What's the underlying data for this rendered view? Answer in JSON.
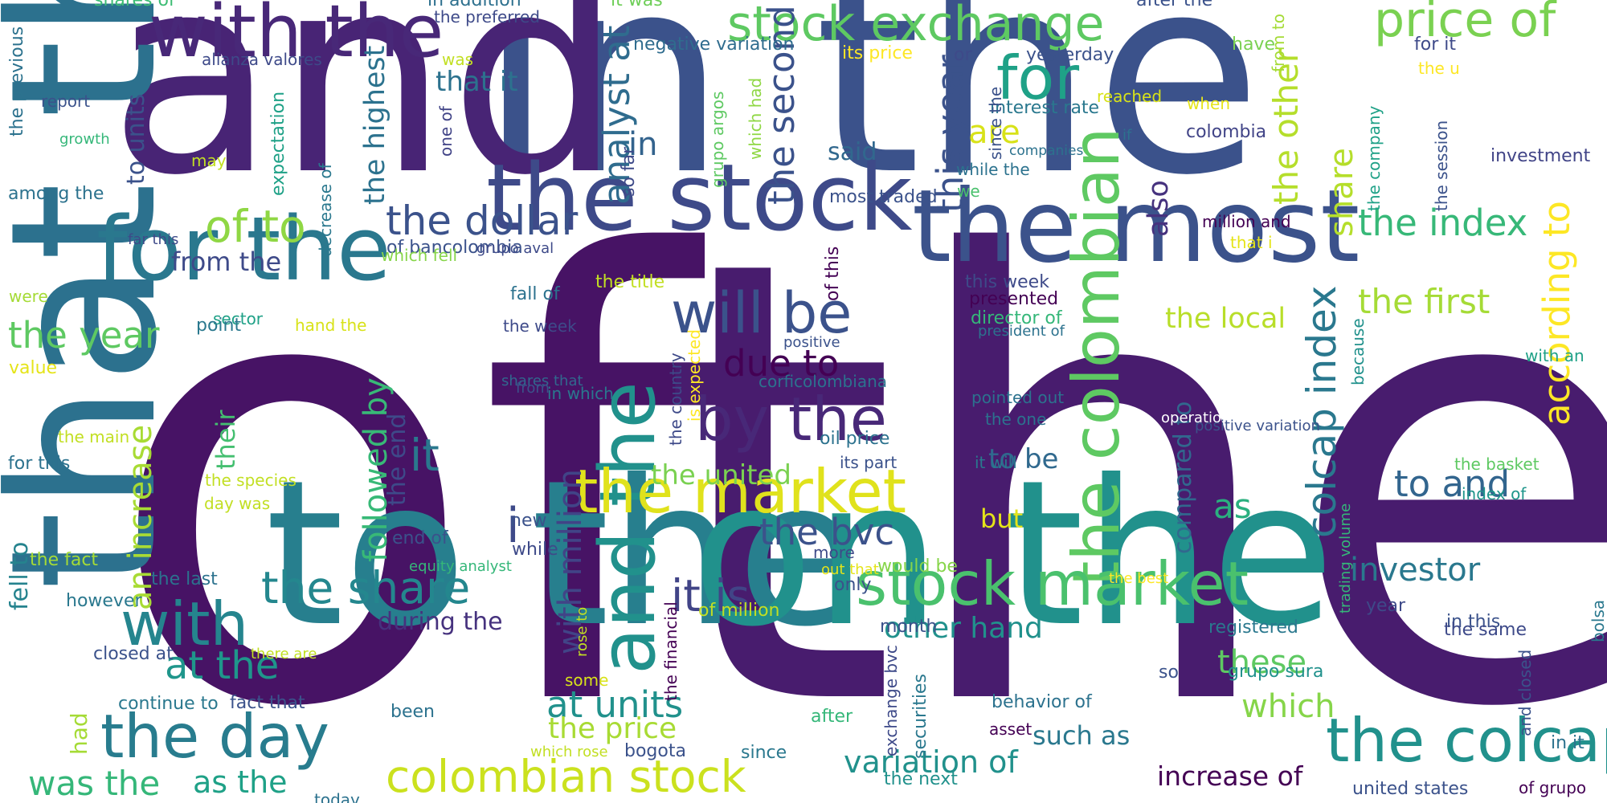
{
  "title": "",
  "words": [
    {
      "text": "of",
      "color": "#471365"
    },
    {
      "text": "the",
      "color": "#481c6e"
    },
    {
      "text": "in the",
      "color": "#3b528b"
    },
    {
      "text": "and",
      "color": "#482475"
    },
    {
      "text": "that the",
      "color": "#2c718e"
    },
    {
      "text": "to the",
      "color": "#277f8e"
    },
    {
      "text": "on the",
      "color": "#21918c"
    },
    {
      "text": "the most",
      "color": "#3b528b"
    },
    {
      "text": "the stock",
      "color": "#3e4a89"
    },
    {
      "text": "with the",
      "color": "#482878"
    },
    {
      "text": "for the",
      "color": "#2a788e"
    },
    {
      "text": "stock exchange",
      "color": "#5ec962"
    },
    {
      "text": "price of",
      "color": "#7ad151"
    },
    {
      "text": "and the",
      "color": "#21918c"
    },
    {
      "text": "the colombian",
      "color": "#5ec962"
    },
    {
      "text": "the market",
      "color": "#e0e21c"
    },
    {
      "text": "stock market",
      "color": "#4ac16d"
    },
    {
      "text": "colombian stock",
      "color": "#cbe11e"
    },
    {
      "text": "the colcap",
      "color": "#21918c"
    },
    {
      "text": "the day",
      "color": "#287c8e"
    },
    {
      "text": "with",
      "color": "#25858e"
    },
    {
      "text": "by the",
      "color": "#482878"
    },
    {
      "text": "will be",
      "color": "#3b528b"
    },
    {
      "text": "for",
      "color": "#1fa187"
    },
    {
      "text": "the share",
      "color": "#24878e"
    },
    {
      "text": "colcap index",
      "color": "#2a788e"
    },
    {
      "text": "according to",
      "color": "#fde725"
    },
    {
      "text": "the index",
      "color": "#37b878"
    },
    {
      "text": "the first",
      "color": "#a5db36"
    },
    {
      "text": "the other",
      "color": "#b5de2b"
    },
    {
      "text": "share",
      "color": "#b5de2b"
    },
    {
      "text": "the year",
      "color": "#5ec962"
    },
    {
      "text": "of to",
      "color": "#8fd744"
    },
    {
      "text": "the dollar",
      "color": "#3b528b"
    },
    {
      "text": "analyst at",
      "color": "#2f6c8e"
    },
    {
      "text": "the second",
      "color": "#3b528b"
    },
    {
      "text": "this year",
      "color": "#3b528b"
    },
    {
      "text": "the highest",
      "color": "#2c728e"
    },
    {
      "text": "followed by",
      "color": "#38b977"
    },
    {
      "text": "due to",
      "color": "#440154"
    },
    {
      "text": "it is",
      "color": "#414487"
    },
    {
      "text": "i",
      "color": "#3e4a89"
    },
    {
      "text": "with million",
      "color": "#414487"
    },
    {
      "text": "the bvc",
      "color": "#3b528b"
    },
    {
      "text": "investor",
      "color": "#2a788e"
    },
    {
      "text": "to and",
      "color": "#32658e"
    },
    {
      "text": "as",
      "color": "#2ab07f"
    },
    {
      "text": "the local",
      "color": "#b8de29"
    },
    {
      "text": "also",
      "color": "#46327e"
    },
    {
      "text": "are",
      "color": "#d8e219"
    },
    {
      "text": "said",
      "color": "#31688e"
    },
    {
      "text": "at the",
      "color": "#1f968b"
    },
    {
      "text": "at units",
      "color": "#21918c"
    },
    {
      "text": "the price",
      "color": "#a8db34"
    },
    {
      "text": "was the",
      "color": "#35b779"
    },
    {
      "text": "as the",
      "color": "#1fa187"
    },
    {
      "text": "variation of",
      "color": "#21918c"
    },
    {
      "text": "increase of",
      "color": "#440154"
    },
    {
      "text": "such as",
      "color": "#2a788e"
    },
    {
      "text": "which",
      "color": "#86d549"
    },
    {
      "text": "these",
      "color": "#5ec962"
    },
    {
      "text": "other hand",
      "color": "#21918c"
    },
    {
      "text": "during the",
      "color": "#46327e"
    },
    {
      "text": "from the",
      "color": "#3e4a89"
    },
    {
      "text": "an increase",
      "color": "#a8db34"
    },
    {
      "text": "it",
      "color": "#2a788e"
    },
    {
      "text": "in",
      "color": "#33638d"
    },
    {
      "text": "the end",
      "color": "#3e4a89"
    },
    {
      "text": "compared to",
      "color": "#31688e"
    },
    {
      "text": "the united",
      "color": "#7ad151"
    },
    {
      "text": "to be",
      "color": "#30698e"
    },
    {
      "text": "but",
      "color": "#e5e419"
    },
    {
      "text": "that it",
      "color": "#2c728e"
    },
    {
      "text": "their",
      "color": "#44bf70"
    },
    {
      "text": "had",
      "color": "#a5db36"
    },
    {
      "text": "fell to",
      "color": "#25838e"
    },
    {
      "text": "to units",
      "color": "#3b528b"
    },
    {
      "text": "the previous",
      "color": "#2c728e"
    },
    {
      "text": "shares of",
      "color": "#3dbc74"
    },
    {
      "text": "in addition",
      "color": "#2d708e"
    },
    {
      "text": "the preferred",
      "color": "#3e4a89"
    },
    {
      "text": "it was",
      "color": "#6ece58"
    },
    {
      "text": "negative variation",
      "color": "#2f6c8e"
    },
    {
      "text": "its price",
      "color": "#fde725"
    },
    {
      "text": "after the",
      "color": "#3b528b"
    },
    {
      "text": "have",
      "color": "#7ad151"
    },
    {
      "text": "for it",
      "color": "#3e4a89"
    },
    {
      "text": "the u",
      "color": "#fde725"
    },
    {
      "text": "from to",
      "color": "#a5db36"
    },
    {
      "text": "yesterday",
      "color": "#3b528b"
    },
    {
      "text": "or",
      "color": "#3e4a89"
    },
    {
      "text": "alianza valores",
      "color": "#3e4a89"
    },
    {
      "text": "was",
      "color": "#c2df23"
    },
    {
      "text": "reached",
      "color": "#d8e219"
    },
    {
      "text": "when",
      "color": "#e5e419"
    },
    {
      "text": "interest rate",
      "color": "#2a788e"
    },
    {
      "text": "if",
      "color": "#2c728e"
    },
    {
      "text": "colombia",
      "color": "#414487"
    },
    {
      "text": "investment",
      "color": "#414487"
    },
    {
      "text": "report",
      "color": "#3b528b"
    },
    {
      "text": "growth",
      "color": "#35b779"
    },
    {
      "text": "among the",
      "color": "#2c728e"
    },
    {
      "text": "may",
      "color": "#c2df23"
    },
    {
      "text": "expectation",
      "color": "#1fa187"
    },
    {
      "text": "decrease of",
      "color": "#2a788e"
    },
    {
      "text": "one of",
      "color": "#414487"
    },
    {
      "text": "so far",
      "color": "#3e4a89"
    },
    {
      "text": "grupo argos",
      "color": "#5ec962"
    },
    {
      "text": "which had",
      "color": "#8fd744"
    },
    {
      "text": "since the",
      "color": "#3b528b"
    },
    {
      "text": "companies",
      "color": "#2c728e"
    },
    {
      "text": "while the",
      "color": "#2c728e"
    },
    {
      "text": "we",
      "color": "#4ac16d"
    },
    {
      "text": "most traded",
      "color": "#3b528b"
    },
    {
      "text": "the company",
      "color": "#1fa187"
    },
    {
      "text": "the session",
      "color": "#3b528b"
    },
    {
      "text": "million and",
      "color": "#440154"
    },
    {
      "text": "that i",
      "color": "#e5e419"
    },
    {
      "text": "far this",
      "color": "#3e4a89"
    },
    {
      "text": "of bancolombia",
      "color": "#3b528b"
    },
    {
      "text": "grupo aval",
      "color": "#3e4a89"
    },
    {
      "text": "which fell",
      "color": "#86d549"
    },
    {
      "text": "of this",
      "color": "#440154"
    },
    {
      "text": "this week",
      "color": "#3e4a89"
    },
    {
      "text": "presented",
      "color": "#440154"
    },
    {
      "text": "director of",
      "color": "#35b779"
    },
    {
      "text": "the title",
      "color": "#c2df23"
    },
    {
      "text": "fall of",
      "color": "#2c728e"
    },
    {
      "text": "the week",
      "color": "#3e4a89"
    },
    {
      "text": "were",
      "color": "#a5db36"
    },
    {
      "text": "sector",
      "color": "#1fa187"
    },
    {
      "text": "point",
      "color": "#2a788e"
    },
    {
      "text": "hand the",
      "color": "#d8e219"
    },
    {
      "text": "president of",
      "color": "#2c728e"
    },
    {
      "text": "because",
      "color": "#21918c"
    },
    {
      "text": "with an",
      "color": "#1fa187"
    },
    {
      "text": "value",
      "color": "#e5e419"
    },
    {
      "text": "positive",
      "color": "#3b528b"
    },
    {
      "text": "shares that",
      "color": "#31688e"
    },
    {
      "text": "corficolombiana",
      "color": "#2c728e"
    },
    {
      "text": "the country",
      "color": "#3e4a89"
    },
    {
      "text": "is expected",
      "color": "#fde725"
    },
    {
      "text": "from",
      "color": "#3b528b"
    },
    {
      "text": "in which",
      "color": "#2a788e"
    },
    {
      "text": "pointed out",
      "color": "#2c728e"
    },
    {
      "text": "operation",
      "color": "#ffffff"
    },
    {
      "text": "the one",
      "color": "#2c728e"
    },
    {
      "text": "positive variation",
      "color": "#3b528b"
    },
    {
      "text": "bolsa",
      "color": "#2a788e"
    },
    {
      "text": "the main",
      "color": "#c2df23"
    },
    {
      "text": "for this",
      "color": "#2c728e"
    },
    {
      "text": "oil price",
      "color": "#2c728e"
    },
    {
      "text": "its part",
      "color": "#3b528b"
    },
    {
      "text": "it will",
      "color": "#2a788e"
    },
    {
      "text": "the basket",
      "color": "#5ec962"
    },
    {
      "text": "index of",
      "color": "#1f968b"
    },
    {
      "text": "the species",
      "color": "#c2df23"
    },
    {
      "text": "day was",
      "color": "#c2df23"
    },
    {
      "text": "trading volume",
      "color": "#35b779"
    },
    {
      "text": "end of",
      "color": "#3b528b"
    },
    {
      "text": "the fact",
      "color": "#a5db36"
    },
    {
      "text": "equity analyst",
      "color": "#35b779"
    },
    {
      "text": "new",
      "color": "#3b528b"
    },
    {
      "text": "while",
      "color": "#3e4a89"
    },
    {
      "text": "would be",
      "color": "#86d549"
    },
    {
      "text": "more",
      "color": "#3e4a89"
    },
    {
      "text": "the last",
      "color": "#2c728e"
    },
    {
      "text": "out that",
      "color": "#e5e419"
    },
    {
      "text": "only",
      "color": "#3b528b"
    },
    {
      "text": "the best",
      "color": "#fde725"
    },
    {
      "text": "however",
      "color": "#2a788e"
    },
    {
      "text": "of million",
      "color": "#c2df23"
    },
    {
      "text": "rose to",
      "color": "#c2df23"
    },
    {
      "text": "the financial",
      "color": "#440154"
    },
    {
      "text": "month",
      "color": "#3b528b"
    },
    {
      "text": "year",
      "color": "#3e4a89"
    },
    {
      "text": "in this",
      "color": "#3b528b"
    },
    {
      "text": "registered",
      "color": "#2a788e"
    },
    {
      "text": "the same",
      "color": "#3e4a89"
    },
    {
      "text": "closed at",
      "color": "#3b528b"
    },
    {
      "text": "there are",
      "color": "#c2df23"
    },
    {
      "text": "some",
      "color": "#d8e219"
    },
    {
      "text": "grupo sura",
      "color": "#21918c"
    },
    {
      "text": "so",
      "color": "#3b528b"
    },
    {
      "text": "continue to",
      "color": "#2a788e"
    },
    {
      "text": "fact that",
      "color": "#3b528b"
    },
    {
      "text": "been",
      "color": "#2c728e"
    },
    {
      "text": "after",
      "color": "#35b779"
    },
    {
      "text": "behavior of",
      "color": "#2c728e"
    },
    {
      "text": "since",
      "color": "#2a788e"
    },
    {
      "text": "exchange bvc",
      "color": "#3e4a89"
    },
    {
      "text": "the next",
      "color": "#21918c"
    },
    {
      "text": "securities",
      "color": "#2a788e"
    },
    {
      "text": "asset",
      "color": "#440154"
    },
    {
      "text": "and closed",
      "color": "#3b528b"
    },
    {
      "text": "in it",
      "color": "#2c728e"
    },
    {
      "text": "which rose",
      "color": "#c2df23"
    },
    {
      "text": "bogota",
      "color": "#3b528b"
    },
    {
      "text": "today",
      "color": "#2c728e"
    },
    {
      "text": "united states",
      "color": "#3b528b"
    },
    {
      "text": "of grupo",
      "color": "#440154"
    }
  ]
}
